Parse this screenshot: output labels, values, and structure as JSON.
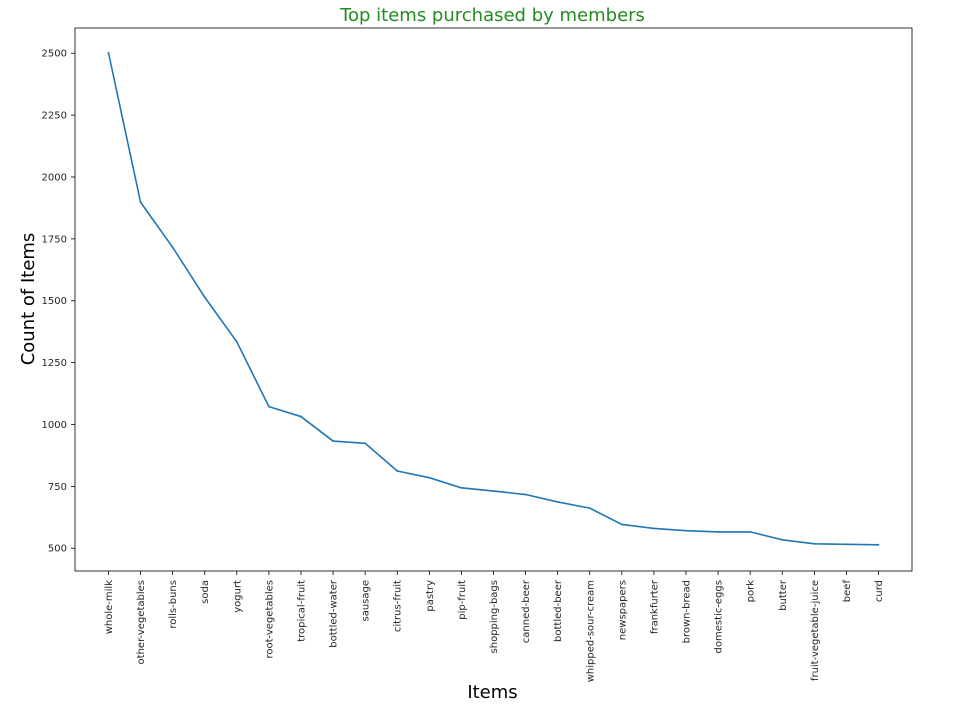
{
  "chart_data": {
    "type": "line",
    "title": "Top items purchased by members",
    "xlabel": "Items",
    "ylabel": "Count of Items",
    "categories": [
      "whole-milk",
      "other-vegetables",
      "rolls-buns",
      "soda",
      "yogurt",
      "root-vegetables",
      "tropical-fruit",
      "bottled-water",
      "sausage",
      "citrus-fruit",
      "pastry",
      "pip-fruit",
      "shopping-bags",
      "canned-beer",
      "bottled-beer",
      "whipped-sour-cream",
      "newspapers",
      "frankfurter",
      "brown-bread",
      "domestic-eggs",
      "pork",
      "butter",
      "fruit-vegetable-juice",
      "beef",
      "curd"
    ],
    "series": [
      {
        "values": [
          2502,
          1898,
          1716,
          1514,
          1334,
          1072,
          1032,
          933,
          924,
          812,
          785,
          744,
          731,
          717,
          687,
          662,
          596,
          580,
          571,
          566,
          566,
          534,
          518,
          516,
          514
        ]
      }
    ],
    "yticks": [
      500,
      750,
      1000,
      1250,
      1500,
      1750,
      2000,
      2250,
      2500
    ],
    "ytick_labels": [
      "500",
      "750",
      "1000",
      "1250",
      "1500",
      "1750",
      "2000",
      "2250",
      "2500"
    ],
    "ylim": [
      408,
      2602
    ],
    "grid": false,
    "colors": {
      "line": "#1f77b4",
      "title": "#228B22",
      "axis": "#000000",
      "background": "#ffffff"
    }
  }
}
